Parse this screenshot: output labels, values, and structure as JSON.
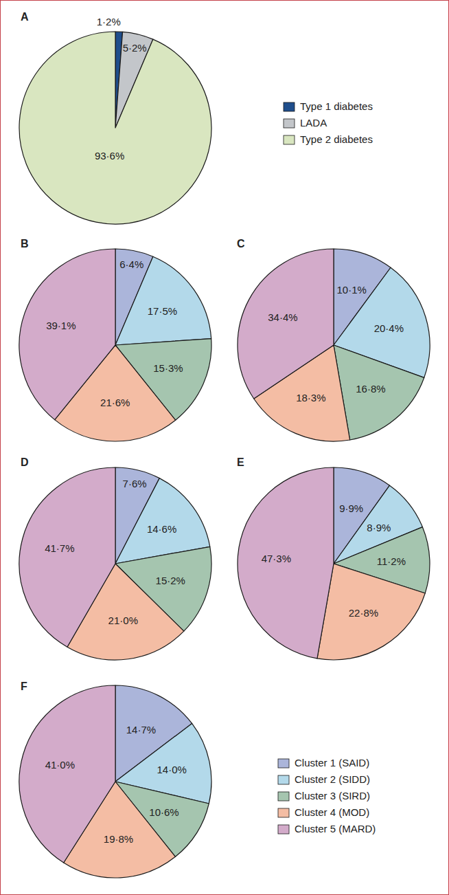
{
  "chart_data": [
    {
      "type": "pie",
      "title": "A",
      "categories": [
        "Type 1 diabetes",
        "LADA",
        "Type 2 diabetes"
      ],
      "values": [
        1.2,
        5.2,
        93.6
      ],
      "value_labels": [
        "1·2%",
        "5·2%",
        "93·6%"
      ],
      "colors": [
        "#1f4e8c",
        "#c3c6ca",
        "#d9e6c0"
      ],
      "data_labels": true,
      "legend": "right"
    },
    {
      "type": "pie",
      "title": "B",
      "categories": [
        "Cluster 1 (SAID)",
        "Cluster 2 (SIDD)",
        "Cluster 3 (SIRD)",
        "Cluster 4 (MOD)",
        "Cluster 5 (MARD)"
      ],
      "values": [
        6.4,
        17.5,
        15.3,
        21.6,
        39.1
      ],
      "value_labels": [
        "6·4%",
        "17·5%",
        "15·3%",
        "21·6%",
        "39·1%"
      ],
      "colors": [
        "#abb5da",
        "#b3d9ea",
        "#a5c5af",
        "#f4bda4",
        "#d3abca"
      ],
      "data_labels": true,
      "legend": "none"
    },
    {
      "type": "pie",
      "title": "C",
      "categories": [
        "Cluster 1 (SAID)",
        "Cluster 2 (SIDD)",
        "Cluster 3 (SIRD)",
        "Cluster 4 (MOD)",
        "Cluster 5 (MARD)"
      ],
      "values": [
        10.1,
        20.4,
        16.8,
        18.3,
        34.4
      ],
      "value_labels": [
        "10·1%",
        "20·4%",
        "16·8%",
        "18·3%",
        "34·4%"
      ],
      "colors": [
        "#abb5da",
        "#b3d9ea",
        "#a5c5af",
        "#f4bda4",
        "#d3abca"
      ],
      "data_labels": true,
      "legend": "none"
    },
    {
      "type": "pie",
      "title": "D",
      "categories": [
        "Cluster 1 (SAID)",
        "Cluster 2 (SIDD)",
        "Cluster 3 (SIRD)",
        "Cluster 4 (MOD)",
        "Cluster 5 (MARD)"
      ],
      "values": [
        7.6,
        14.6,
        15.2,
        21.0,
        41.7
      ],
      "value_labels": [
        "7·6%",
        "14·6%",
        "15·2%",
        "21·0%",
        "41·7%"
      ],
      "colors": [
        "#abb5da",
        "#b3d9ea",
        "#a5c5af",
        "#f4bda4",
        "#d3abca"
      ],
      "data_labels": true,
      "legend": "none"
    },
    {
      "type": "pie",
      "title": "E",
      "categories": [
        "Cluster 1 (SAID)",
        "Cluster 2 (SIDD)",
        "Cluster 3 (SIRD)",
        "Cluster 4 (MOD)",
        "Cluster 5 (MARD)"
      ],
      "values": [
        9.9,
        8.9,
        11.2,
        22.8,
        47.3
      ],
      "value_labels": [
        "9·9%",
        "8·9%",
        "11·2%",
        "22·8%",
        "47·3%"
      ],
      "colors": [
        "#abb5da",
        "#b3d9ea",
        "#a5c5af",
        "#f4bda4",
        "#d3abca"
      ],
      "data_labels": true,
      "legend": "none"
    },
    {
      "type": "pie",
      "title": "F",
      "categories": [
        "Cluster 1 (SAID)",
        "Cluster 2 (SIDD)",
        "Cluster 3 (SIRD)",
        "Cluster 4 (MOD)",
        "Cluster 5 (MARD)"
      ],
      "values": [
        14.7,
        14.0,
        10.6,
        19.8,
        41.0
      ],
      "value_labels": [
        "14·7%",
        "14·0%",
        "10·6%",
        "19·8%",
        "41·0%"
      ],
      "colors": [
        "#abb5da",
        "#b3d9ea",
        "#a5c5af",
        "#f4bda4",
        "#d3abca"
      ],
      "data_labels": true,
      "legend": "right"
    }
  ]
}
